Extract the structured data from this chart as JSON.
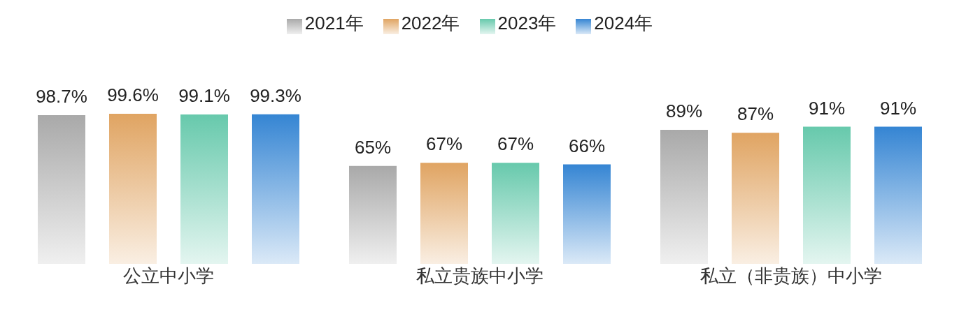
{
  "chart_data": {
    "type": "bar",
    "categories": [
      "公立中小学",
      "私立贵族中小学",
      "私立（非贵族）中小学"
    ],
    "series": [
      {
        "name": "2021年",
        "color": "#a9a9a9",
        "values": [
          98.7,
          65,
          89
        ],
        "value_labels": [
          "98.7%",
          "65%",
          "89%"
        ]
      },
      {
        "name": "2022年",
        "color": "#e0a462",
        "values": [
          99.6,
          67,
          87
        ],
        "value_labels": [
          "99.6%",
          "67%",
          "87%"
        ]
      },
      {
        "name": "2023年",
        "color": "#67c9ac",
        "values": [
          99.1,
          67,
          91
        ],
        "value_labels": [
          "99.1%",
          "67%",
          "91%"
        ]
      },
      {
        "name": "2024年",
        "color": "#3585d3",
        "values": [
          99.3,
          66,
          91
        ],
        "value_labels": [
          "99.3%",
          "66%",
          "91%"
        ]
      }
    ],
    "legend": "top",
    "grid": false
  }
}
